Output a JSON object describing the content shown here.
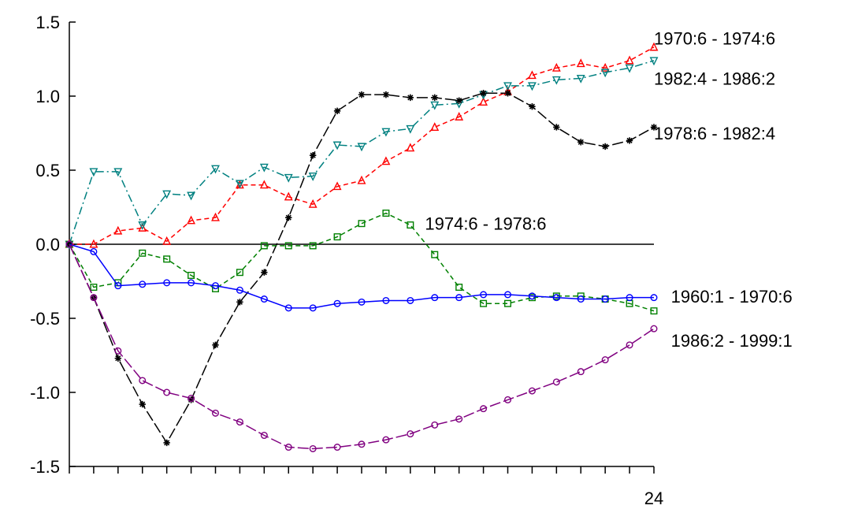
{
  "chart_data": {
    "type": "line",
    "title": "",
    "xlabel": "",
    "ylabel": "",
    "x": [
      0,
      1,
      2,
      3,
      4,
      5,
      6,
      7,
      8,
      9,
      10,
      11,
      12,
      13,
      14,
      15,
      16,
      17,
      18,
      19,
      20,
      21,
      22,
      23,
      24
    ],
    "xlim": [
      0,
      24
    ],
    "ylim": [
      -1.5,
      1.5
    ],
    "y_ticks": [
      1.5,
      1.0,
      0.5,
      0.0,
      -0.5,
      -1.0,
      -1.5
    ],
    "y_tick_labels": [
      "1.5",
      "1.0",
      "0.5",
      "0.0",
      "-0.5",
      "-1.0",
      "-1.5"
    ],
    "x_tick_labels": [
      {
        "x": 24,
        "label": "24"
      }
    ],
    "zero_line": true,
    "grid": false,
    "legend": "labels at line ends",
    "series": [
      {
        "name": "1970:6 - 1974:6",
        "color": "#ff0000",
        "marker": "triangle-up",
        "dash": "dashed",
        "label_pos": [
          24,
          1.39
        ],
        "values": [
          0.0,
          0.0,
          0.09,
          0.11,
          0.02,
          0.16,
          0.18,
          0.4,
          0.4,
          0.32,
          0.27,
          0.39,
          0.43,
          0.56,
          0.65,
          0.79,
          0.86,
          0.96,
          1.03,
          1.14,
          1.19,
          1.22,
          1.19,
          1.24,
          1.33
        ]
      },
      {
        "name": "1982:4 - 1986:2",
        "color": "#008080",
        "marker": "triangle-down",
        "dash": "dashdot",
        "label_pos": [
          24,
          1.12
        ],
        "values": [
          0.0,
          0.49,
          0.49,
          0.13,
          0.34,
          0.33,
          0.51,
          0.41,
          0.52,
          0.45,
          0.46,
          0.67,
          0.66,
          0.76,
          0.78,
          0.94,
          0.95,
          1.01,
          1.07,
          1.07,
          1.11,
          1.12,
          1.16,
          1.19,
          1.24
        ]
      },
      {
        "name": "1978:6 - 1982:4",
        "color": "#000000",
        "marker": "star",
        "dash": "longdash",
        "label_pos": [
          24,
          0.75
        ],
        "values": [
          0.0,
          -0.36,
          -0.77,
          -1.08,
          -1.34,
          -1.05,
          -0.68,
          -0.39,
          -0.19,
          0.18,
          0.6,
          0.9,
          1.01,
          1.01,
          0.99,
          0.99,
          0.97,
          1.02,
          1.02,
          0.93,
          0.79,
          0.69,
          0.66,
          0.7,
          0.79
        ]
      },
      {
        "name": "1974:6 - 1978:6",
        "color": "#008000",
        "marker": "square",
        "dash": "dashed",
        "label_pos": [
          14.6,
          0.14
        ],
        "values": [
          0.0,
          -0.29,
          -0.26,
          -0.06,
          -0.1,
          -0.21,
          -0.3,
          -0.19,
          -0.01,
          -0.01,
          -0.01,
          0.05,
          0.14,
          0.21,
          0.13,
          -0.07,
          -0.29,
          -0.4,
          -0.4,
          -0.36,
          -0.35,
          -0.35,
          -0.37,
          -0.4,
          -0.45
        ]
      },
      {
        "name": "1960:1 - 1970:6",
        "color": "#0000ff",
        "marker": "circle",
        "dash": "solid",
        "label_pos": [
          24.7,
          -0.35
        ],
        "values": [
          0.0,
          -0.05,
          -0.28,
          -0.27,
          -0.26,
          -0.26,
          -0.28,
          -0.31,
          -0.37,
          -0.43,
          -0.43,
          -0.4,
          -0.39,
          -0.38,
          -0.38,
          -0.36,
          -0.36,
          -0.34,
          -0.34,
          -0.35,
          -0.36,
          -0.37,
          -0.37,
          -0.36,
          -0.36
        ]
      },
      {
        "name": "1986:2 - 1999:1",
        "color": "#800080",
        "marker": "circle",
        "dash": "longdash",
        "label_pos": [
          24.7,
          -0.65
        ],
        "values": [
          0.0,
          -0.36,
          -0.72,
          -0.92,
          -1.0,
          -1.04,
          -1.14,
          -1.2,
          -1.29,
          -1.37,
          -1.38,
          -1.37,
          -1.35,
          -1.32,
          -1.28,
          -1.22,
          -1.18,
          -1.11,
          -1.05,
          -0.99,
          -0.93,
          -0.86,
          -0.78,
          -0.68,
          -0.57
        ]
      }
    ]
  }
}
